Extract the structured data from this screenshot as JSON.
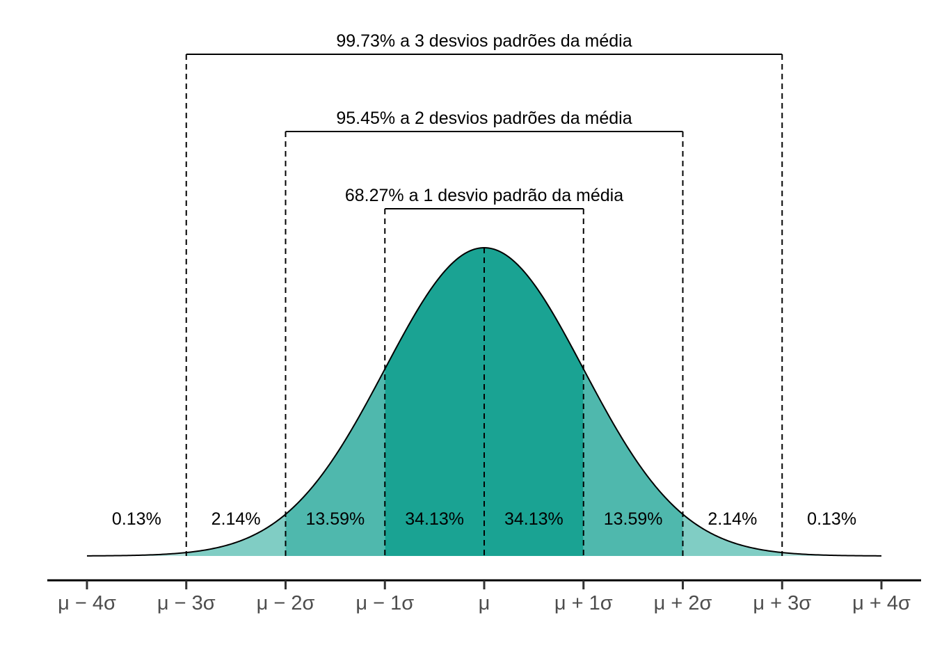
{
  "chart_data": {
    "type": "area",
    "title": "",
    "xlabel": "",
    "ylabel": "",
    "distribution": "normal",
    "xlim": [
      -4,
      4
    ],
    "x_ticks": [
      -4,
      -3,
      -2,
      -1,
      0,
      1,
      2,
      3,
      4
    ],
    "x_tick_labels": [
      "μ − 4σ",
      "μ − 3σ",
      "μ − 2σ",
      "μ − 1σ",
      "μ",
      "μ + 1σ",
      "μ + 2σ",
      "μ + 3σ",
      "μ + 4σ"
    ],
    "regions": [
      {
        "from": -4,
        "to": -3,
        "label": "0.13%",
        "color": "#b3e1db"
      },
      {
        "from": -3,
        "to": -2,
        "label": "2.14%",
        "color": "#80cdc4"
      },
      {
        "from": -2,
        "to": -1,
        "label": "13.59%",
        "color": "#4fb8ad"
      },
      {
        "from": -1,
        "to": 0,
        "label": "34.13%",
        "color": "#1aa393"
      },
      {
        "from": 0,
        "to": 1,
        "label": "34.13%",
        "color": "#1aa393"
      },
      {
        "from": 1,
        "to": 2,
        "label": "13.59%",
        "color": "#4fb8ad"
      },
      {
        "from": 2,
        "to": 3,
        "label": "2.14%",
        "color": "#80cdc4"
      },
      {
        "from": 3,
        "to": 4,
        "label": "0.13%",
        "color": "#b3e1db"
      }
    ],
    "brackets": [
      {
        "k": 1,
        "label": "68.27% a 1 desvio padrão da média"
      },
      {
        "k": 2,
        "label": "95.45% a 2 desvios padrões da média"
      },
      {
        "k": 3,
        "label": "99.73% a 3 desvios padrões da média"
      }
    ]
  }
}
